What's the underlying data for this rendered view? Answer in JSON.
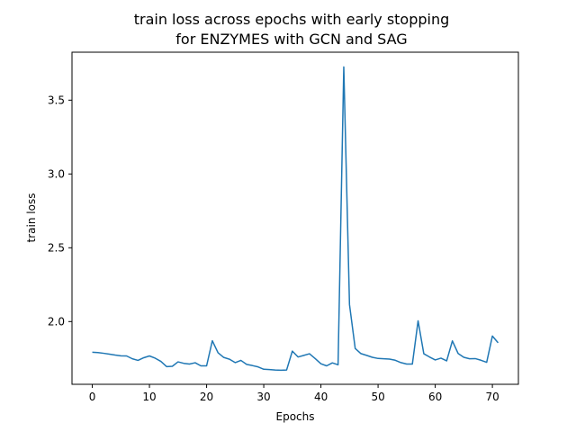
{
  "chart_data": {
    "type": "line",
    "title_lines": [
      "train loss across epochs with early stopping",
      "for ENZYMES with GCN and SAG"
    ],
    "xlabel": "Epochs",
    "ylabel": "train loss",
    "xlim": [
      -3.55,
      74.55
    ],
    "ylim": [
      1.575,
      3.825
    ],
    "xticks": [
      0,
      10,
      20,
      30,
      40,
      50,
      60,
      70
    ],
    "yticks": [
      2.0,
      2.5,
      3.0,
      3.5
    ],
    "ytick_labels": [
      "2.0",
      "2.5",
      "3.0",
      "3.5"
    ],
    "grid": false,
    "legend": "none",
    "colors": {
      "line": "#1f77b4",
      "axes": "#000000",
      "background": "#ffffff"
    },
    "series": [
      {
        "x": [
          0,
          1,
          2,
          3,
          4,
          5,
          6,
          7,
          8,
          9,
          10,
          11,
          12,
          13,
          14,
          15,
          16,
          17,
          18,
          19,
          20,
          21,
          22,
          23,
          24,
          25,
          26,
          27,
          28,
          29,
          30,
          31,
          32,
          33,
          34,
          35,
          36,
          37,
          38,
          39,
          40,
          41,
          42,
          43,
          44,
          45,
          46,
          47,
          48,
          49,
          50,
          51,
          52,
          53,
          54,
          55,
          56,
          57,
          58,
          59,
          60,
          61,
          62,
          63,
          64,
          65,
          66,
          67,
          68,
          69,
          70,
          71
        ],
        "y": [
          1.792,
          1.79,
          1.785,
          1.779,
          1.773,
          1.768,
          1.767,
          1.748,
          1.737,
          1.755,
          1.767,
          1.752,
          1.73,
          1.695,
          1.697,
          1.727,
          1.717,
          1.712,
          1.721,
          1.7,
          1.7,
          1.87,
          1.789,
          1.757,
          1.745,
          1.722,
          1.737,
          1.71,
          1.702,
          1.693,
          1.677,
          1.675,
          1.672,
          1.67,
          1.672,
          1.8,
          1.76,
          1.771,
          1.782,
          1.749,
          1.714,
          1.7,
          1.72,
          1.707,
          3.725,
          2.115,
          1.818,
          1.783,
          1.771,
          1.758,
          1.75,
          1.748,
          1.746,
          1.738,
          1.722,
          1.712,
          1.712,
          2.005,
          1.782,
          1.76,
          1.74,
          1.752,
          1.734,
          1.869,
          1.784,
          1.758,
          1.748,
          1.749,
          1.738,
          1.724,
          1.902,
          1.856
        ]
      }
    ]
  }
}
